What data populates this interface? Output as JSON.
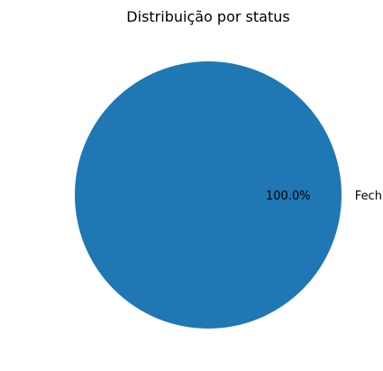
{
  "chart_data": {
    "type": "pie",
    "title": "Distribuição por status",
    "slices": [
      {
        "label": "Fechado",
        "value": 100.0,
        "pct_label": "100.0%",
        "color": "#1f77b4"
      }
    ],
    "legend": "none",
    "grid": false
  }
}
